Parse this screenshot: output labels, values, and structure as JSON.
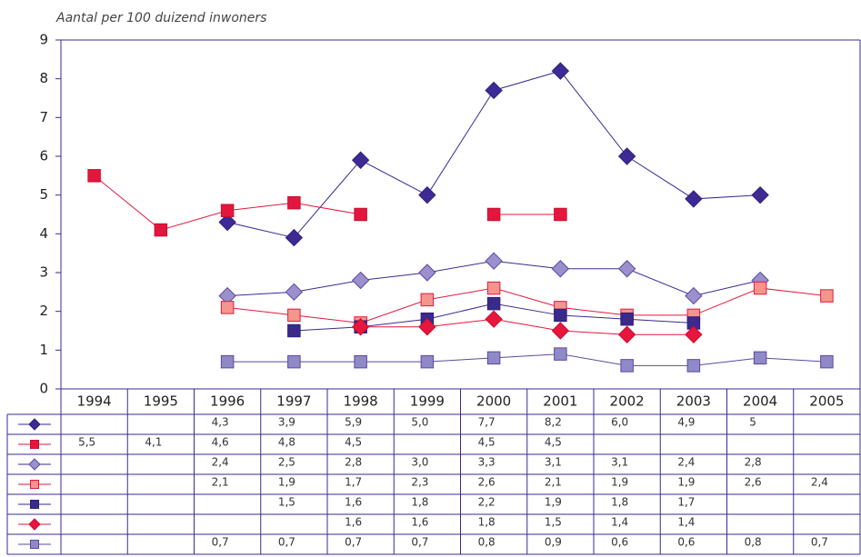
{
  "chart_data": {
    "type": "line",
    "title": "Aantal per 100 duizend inwoners",
    "categories": [
      "1994",
      "1995",
      "1996",
      "1997",
      "1998",
      "1999",
      "2000",
      "2001",
      "2002",
      "2003",
      "2004",
      "2005"
    ],
    "ylim": [
      0,
      9
    ],
    "yticks": [
      0,
      1,
      2,
      3,
      4,
      5,
      6,
      7,
      8,
      9
    ],
    "series": [
      {
        "color": "#3d2a94",
        "marker": "diamond",
        "edgecolor": "#2e1f7a",
        "values": [
          null,
          null,
          4.3,
          3.9,
          5.9,
          5.0,
          7.7,
          8.2,
          6.0,
          4.9,
          5,
          null
        ],
        "value_labels": [
          null,
          null,
          "4,3",
          "3,9",
          "5,9",
          "5,0",
          "7,7",
          "8,2",
          "6,0",
          "4,9",
          "5",
          null
        ]
      },
      {
        "color": "#e3173e",
        "marker": "square",
        "edgecolor": "#c80f30",
        "values": [
          5.5,
          4.1,
          4.6,
          4.8,
          4.5,
          null,
          4.5,
          4.5,
          null,
          null,
          null,
          null
        ],
        "value_labels": [
          "5,5",
          "4,1",
          "4,6",
          "4,8",
          "4,5",
          null,
          "4,5",
          "4,5",
          null,
          null,
          null,
          null
        ]
      },
      {
        "color": "#9b8fce",
        "marker": "diamond",
        "edgecolor": "#5a4a9e",
        "linecolor": "#3d2a94",
        "values": [
          null,
          null,
          2.4,
          2.5,
          2.8,
          3.0,
          3.3,
          3.1,
          3.1,
          2.4,
          2.8,
          null
        ],
        "value_labels": [
          null,
          null,
          "2,4",
          "2,5",
          "2,8",
          "3,0",
          "3,3",
          "3,1",
          "3,1",
          "2,4",
          "2,8",
          null
        ]
      },
      {
        "color": "#f4968c",
        "marker": "square",
        "edgecolor": "#e3173e",
        "linecolor": "#e3173e",
        "values": [
          null,
          null,
          2.1,
          1.9,
          1.7,
          2.3,
          2.6,
          2.1,
          1.9,
          1.9,
          2.6,
          2.4
        ],
        "value_labels": [
          null,
          null,
          "2,1",
          "1,9",
          "1,7",
          "2,3",
          "2,6",
          "2,1",
          "1,9",
          "1,9",
          "2,6",
          "2,4"
        ]
      },
      {
        "color": "#3a2a8c",
        "marker": "square",
        "edgecolor": "#2e1f7a",
        "values": [
          null,
          null,
          null,
          1.5,
          1.6,
          1.8,
          2.2,
          1.9,
          1.8,
          1.7,
          null,
          null
        ],
        "value_labels": [
          null,
          null,
          null,
          "1,5",
          "1,6",
          "1,8",
          "2,2",
          "1,9",
          "1,8",
          "1,7",
          null,
          null
        ]
      },
      {
        "color": "#e8153c",
        "marker": "diamond",
        "edgecolor": "#c80f30",
        "values": [
          null,
          null,
          null,
          null,
          1.6,
          1.6,
          1.8,
          1.5,
          1.4,
          1.4,
          null,
          null
        ],
        "value_labels": [
          null,
          null,
          null,
          null,
          "1,6",
          "1,6",
          "1,8",
          "1,5",
          "1,4",
          "1,4",
          null,
          null
        ]
      },
      {
        "color": "#9089c8",
        "marker": "square",
        "edgecolor": "#5a4a9e",
        "linecolor": "#5a4a9e",
        "values": [
          null,
          null,
          0.7,
          0.7,
          0.7,
          0.7,
          0.8,
          0.9,
          0.6,
          0.6,
          0.8,
          0.7
        ],
        "value_labels": [
          null,
          null,
          "0,7",
          "0,7",
          "0,7",
          "0,7",
          "0,8",
          "0,9",
          "0,6",
          "0,6",
          "0,8",
          "0,7"
        ]
      }
    ]
  }
}
